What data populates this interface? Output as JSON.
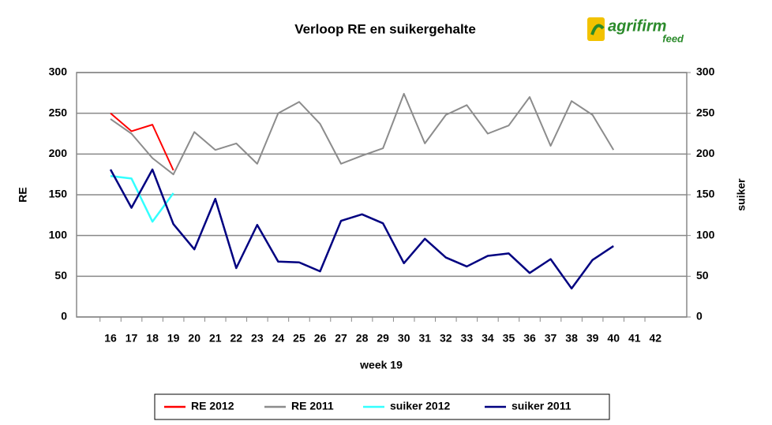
{
  "logo": {
    "name": "agrifirm",
    "sub": "feed"
  },
  "chart_data": {
    "type": "line",
    "title": "Verloop RE en suikergehalte",
    "xlabel": "week 19",
    "ylabel": "RE",
    "y2label": "suiker",
    "categories": [
      "16",
      "17",
      "18",
      "19",
      "20",
      "21",
      "22",
      "23",
      "24",
      "25",
      "26",
      "27",
      "28",
      "29",
      "30",
      "31",
      "32",
      "33",
      "34",
      "35",
      "36",
      "37",
      "38",
      "39",
      "40",
      "41",
      "42"
    ],
    "ylim": [
      0,
      300
    ],
    "yticks": [
      0,
      50,
      100,
      150,
      200,
      250,
      300
    ],
    "y2lim": [
      0,
      300
    ],
    "y2ticks": [
      0,
      50,
      100,
      150,
      200,
      250,
      300
    ],
    "grid": true,
    "legend": "bottom",
    "series": [
      {
        "name": "RE 2012",
        "color": "#ff0000",
        "values": [
          250,
          228,
          236,
          180,
          null,
          null,
          null,
          null,
          null,
          null,
          null,
          null,
          null,
          null,
          null,
          null,
          null,
          null,
          null,
          null,
          null,
          null,
          null,
          null,
          null,
          null,
          null
        ]
      },
      {
        "name": "RE 2011",
        "color": "#8c8c8c",
        "values": [
          243,
          225,
          195,
          175,
          227,
          205,
          213,
          188,
          250,
          264,
          237,
          188,
          198,
          207,
          274,
          213,
          248,
          260,
          225,
          235,
          270,
          210,
          265,
          248,
          205,
          null,
          null
        ]
      },
      {
        "name": "suiker 2012",
        "color": "#33ffff",
        "axis": "y2",
        "values": [
          173,
          170,
          117,
          152,
          null,
          null,
          null,
          null,
          null,
          null,
          null,
          null,
          null,
          null,
          null,
          null,
          null,
          null,
          null,
          null,
          null,
          null,
          null,
          null,
          null,
          null,
          null
        ]
      },
      {
        "name": "suiker 2011",
        "color": "#000080",
        "axis": "y2",
        "values": [
          181,
          134,
          181,
          114,
          83,
          145,
          60,
          113,
          68,
          67,
          56,
          118,
          126,
          115,
          66,
          96,
          73,
          62,
          75,
          78,
          54,
          71,
          35,
          70,
          87,
          null,
          null
        ]
      }
    ]
  }
}
